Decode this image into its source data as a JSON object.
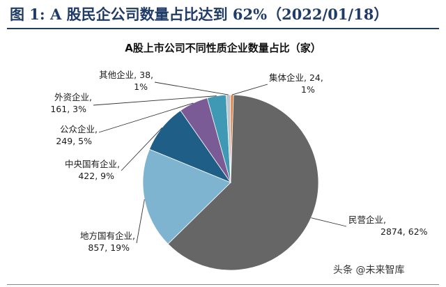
{
  "figure_title": "图 1:  A 股民企公司数量占比达到 62%（2022/01/18）",
  "watermark": "头条 @未来智库",
  "chart_data": {
    "type": "pie",
    "title": "A股上市公司不同性质企业数量占比（家）",
    "slices": [
      {
        "name": "集体企业",
        "value": 24,
        "percent": "1%",
        "color": "#e07b39"
      },
      {
        "name": "民营企业",
        "value": 2874,
        "percent": "62%",
        "color": "#666666"
      },
      {
        "name": "地方国有企业",
        "value": 857,
        "percent": "19%",
        "color": "#7fb4d0"
      },
      {
        "name": "中央国有企业",
        "value": 422,
        "percent": "9%",
        "color": "#1f5f87"
      },
      {
        "name": "公众企业",
        "value": 249,
        "percent": "5%",
        "color": "#7a5b96"
      },
      {
        "name": "外资企业",
        "value": 161,
        "percent": "3%",
        "color": "#3f98b4"
      },
      {
        "name": "其他企业",
        "value": 38,
        "percent": "1%",
        "color": "#bfc5cc"
      }
    ],
    "labels": [
      {
        "line1": "集体企业, 24,",
        "line2": "1%"
      },
      {
        "line1": "民营企业,",
        "line2": "2874, 62%"
      },
      {
        "line1": "地方国有企业,",
        "line2": "857, 19%"
      },
      {
        "line1": "中央国有企业,",
        "line2": "422, 9%"
      },
      {
        "line1": "公众企业,",
        "line2": "249, 5%"
      },
      {
        "line1": "外资企业,",
        "line2": "161, 3%"
      },
      {
        "line1": "其他企业, 38,",
        "line2": "1%"
      }
    ]
  }
}
